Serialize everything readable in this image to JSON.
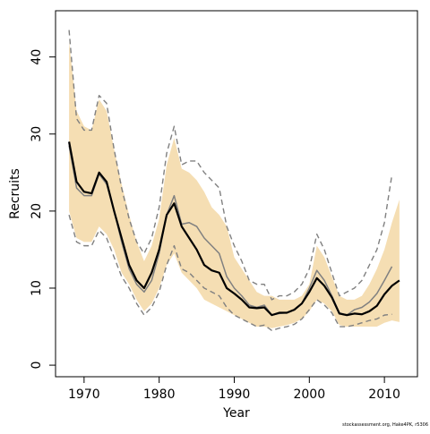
{
  "chart_data": {
    "type": "line",
    "title": "",
    "xlabel": "Year",
    "ylabel": "Recruits",
    "credit": "stockassessment.org, Hake4PK, r5306",
    "xlim": [
      1966.2,
      2014.4
    ],
    "ylim": [
      -1.5,
      46.0
    ],
    "x_ticks": [
      1970,
      1980,
      1990,
      2000,
      2010
    ],
    "y_ticks": [
      0,
      10,
      20,
      30,
      40
    ],
    "grid": false,
    "legend": "none",
    "colors": {
      "band": "#f5deb3",
      "estimate": "#000000",
      "previous": "#808080",
      "previous_bounds": "#808080",
      "axis": "#000000"
    },
    "x": [
      1968,
      1969,
      1970,
      1971,
      1972,
      1973,
      1974,
      1975,
      1976,
      1977,
      1978,
      1979,
      1980,
      1981,
      1982,
      1983,
      1984,
      1985,
      1986,
      1987,
      1988,
      1989,
      1990,
      1991,
      1992,
      1993,
      1994,
      1995,
      1996,
      1997,
      1998,
      1999,
      2000,
      2001,
      2002,
      2003,
      2004,
      2005,
      2006,
      2007,
      2008,
      2009,
      2010,
      2011,
      2012
    ],
    "series": [
      {
        "role": "upper-bound-band",
        "values": [
          42.0,
          33.0,
          31.0,
          30.5,
          34.5,
          33.0,
          28.0,
          23.5,
          19.5,
          16.0,
          13.5,
          15.5,
          19.0,
          26.0,
          29.5,
          25.5,
          25.0,
          24.0,
          22.5,
          20.5,
          19.5,
          18.0,
          14.0,
          12.5,
          11.0,
          9.5,
          9.0,
          9.0,
          8.5,
          8.5,
          8.5,
          9.0,
          10.5,
          15.5,
          14.0,
          11.5,
          9.0,
          8.5,
          8.5,
          9.0,
          10.5,
          12.5,
          15.0,
          18.5,
          21.5
        ]
      },
      {
        "role": "lower-bound-band",
        "values": [
          20.0,
          16.5,
          16.0,
          16.0,
          18.0,
          17.0,
          15.0,
          12.0,
          10.5,
          8.5,
          7.0,
          8.0,
          10.0,
          13.0,
          14.5,
          12.0,
          11.0,
          10.0,
          8.5,
          8.0,
          7.5,
          7.0,
          6.5,
          6.0,
          5.5,
          5.0,
          5.0,
          4.8,
          5.0,
          5.2,
          5.5,
          6.0,
          7.0,
          8.5,
          8.0,
          7.0,
          5.2,
          5.0,
          5.0,
          5.0,
          5.0,
          5.0,
          5.5,
          5.8,
          5.6
        ]
      },
      {
        "role": "estimate",
        "values": [
          29.0,
          23.8,
          22.5,
          22.3,
          25.0,
          23.8,
          20.0,
          16.5,
          13.0,
          11.0,
          10.0,
          12.0,
          15.0,
          19.5,
          21.0,
          18.0,
          16.5,
          15.0,
          13.0,
          12.3,
          12.0,
          10.0,
          9.3,
          8.5,
          7.5,
          7.4,
          7.5,
          6.5,
          6.8,
          6.8,
          7.2,
          8.0,
          9.5,
          11.3,
          10.3,
          8.8,
          6.7,
          6.5,
          6.7,
          6.6,
          7.0,
          7.7,
          9.2,
          10.3,
          11.0
        ]
      },
      {
        "role": "previous-estimate",
        "values": [
          28.5,
          23.0,
          22.0,
          22.0,
          24.8,
          23.5,
          20.0,
          16.0,
          12.5,
          10.5,
          9.5,
          11.0,
          14.5,
          19.5,
          22.0,
          18.3,
          18.5,
          18.0,
          16.5,
          15.5,
          14.5,
          11.5,
          10.0,
          9.0,
          7.8,
          7.5,
          7.8,
          6.5,
          6.7,
          6.8,
          7.2,
          8.0,
          10.0,
          12.3,
          11.0,
          9.0,
          6.8,
          6.5,
          7.2,
          7.5,
          8.2,
          9.3,
          11.0,
          12.8,
          null
        ]
      },
      {
        "role": "previous-upper-bound",
        "values": [
          43.5,
          32.0,
          30.5,
          30.5,
          35.0,
          34.0,
          28.0,
          23.0,
          19.0,
          16.0,
          14.5,
          16.5,
          20.5,
          27.5,
          31.0,
          26.0,
          26.5,
          26.5,
          25.0,
          24.0,
          23.0,
          18.0,
          15.5,
          13.5,
          11.0,
          10.5,
          10.5,
          8.5,
          9.0,
          9.0,
          9.5,
          10.5,
          12.5,
          17.0,
          15.0,
          12.0,
          9.0,
          9.5,
          10.0,
          11.0,
          13.0,
          15.0,
          18.5,
          24.7,
          null
        ]
      },
      {
        "role": "previous-lower-bound",
        "values": [
          19.5,
          16.0,
          15.5,
          15.5,
          17.5,
          16.5,
          14.0,
          11.5,
          10.0,
          8.0,
          6.5,
          7.5,
          9.5,
          13.0,
          15.5,
          12.5,
          12.0,
          11.0,
          10.0,
          9.5,
          9.0,
          7.5,
          6.5,
          6.0,
          5.5,
          5.0,
          5.2,
          4.5,
          4.8,
          5.0,
          5.3,
          6.0,
          7.2,
          8.5,
          7.8,
          6.8,
          5.0,
          5.0,
          5.2,
          5.5,
          5.8,
          6.0,
          6.5,
          6.6,
          null
        ]
      }
    ]
  }
}
